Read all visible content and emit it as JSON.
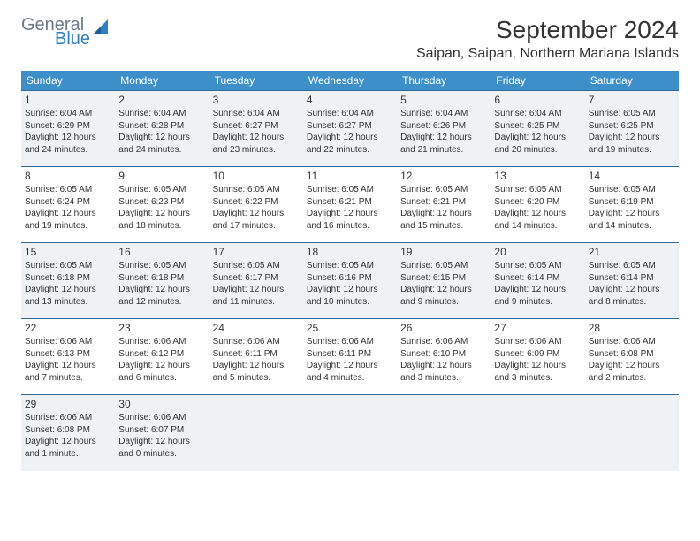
{
  "brand": {
    "general": "General",
    "blue": "Blue"
  },
  "title": "September 2024",
  "location": "Saipan, Saipan, Northern Mariana Islands",
  "colors": {
    "header_bg": "#3d8fc9",
    "header_text": "#ffffff",
    "row_alt_bg": "#eef2f5",
    "border": "#2f6a99",
    "logo_gray": "#6b7a89",
    "logo_blue": "#2f7ebf"
  },
  "day_headers": [
    "Sunday",
    "Monday",
    "Tuesday",
    "Wednesday",
    "Thursday",
    "Friday",
    "Saturday"
  ],
  "weeks": [
    {
      "alt": true,
      "cells": [
        {
          "n": "1",
          "sr": "6:04 AM",
          "ss": "6:29 PM",
          "dl": "12 hours and 24 minutes."
        },
        {
          "n": "2",
          "sr": "6:04 AM",
          "ss": "6:28 PM",
          "dl": "12 hours and 24 minutes."
        },
        {
          "n": "3",
          "sr": "6:04 AM",
          "ss": "6:27 PM",
          "dl": "12 hours and 23 minutes."
        },
        {
          "n": "4",
          "sr": "6:04 AM",
          "ss": "6:27 PM",
          "dl": "12 hours and 22 minutes."
        },
        {
          "n": "5",
          "sr": "6:04 AM",
          "ss": "6:26 PM",
          "dl": "12 hours and 21 minutes."
        },
        {
          "n": "6",
          "sr": "6:04 AM",
          "ss": "6:25 PM",
          "dl": "12 hours and 20 minutes."
        },
        {
          "n": "7",
          "sr": "6:05 AM",
          "ss": "6:25 PM",
          "dl": "12 hours and 19 minutes."
        }
      ]
    },
    {
      "alt": false,
      "cells": [
        {
          "n": "8",
          "sr": "6:05 AM",
          "ss": "6:24 PM",
          "dl": "12 hours and 19 minutes."
        },
        {
          "n": "9",
          "sr": "6:05 AM",
          "ss": "6:23 PM",
          "dl": "12 hours and 18 minutes."
        },
        {
          "n": "10",
          "sr": "6:05 AM",
          "ss": "6:22 PM",
          "dl": "12 hours and 17 minutes."
        },
        {
          "n": "11",
          "sr": "6:05 AM",
          "ss": "6:21 PM",
          "dl": "12 hours and 16 minutes."
        },
        {
          "n": "12",
          "sr": "6:05 AM",
          "ss": "6:21 PM",
          "dl": "12 hours and 15 minutes."
        },
        {
          "n": "13",
          "sr": "6:05 AM",
          "ss": "6:20 PM",
          "dl": "12 hours and 14 minutes."
        },
        {
          "n": "14",
          "sr": "6:05 AM",
          "ss": "6:19 PM",
          "dl": "12 hours and 14 minutes."
        }
      ]
    },
    {
      "alt": true,
      "cells": [
        {
          "n": "15",
          "sr": "6:05 AM",
          "ss": "6:18 PM",
          "dl": "12 hours and 13 minutes."
        },
        {
          "n": "16",
          "sr": "6:05 AM",
          "ss": "6:18 PM",
          "dl": "12 hours and 12 minutes."
        },
        {
          "n": "17",
          "sr": "6:05 AM",
          "ss": "6:17 PM",
          "dl": "12 hours and 11 minutes."
        },
        {
          "n": "18",
          "sr": "6:05 AM",
          "ss": "6:16 PM",
          "dl": "12 hours and 10 minutes."
        },
        {
          "n": "19",
          "sr": "6:05 AM",
          "ss": "6:15 PM",
          "dl": "12 hours and 9 minutes."
        },
        {
          "n": "20",
          "sr": "6:05 AM",
          "ss": "6:14 PM",
          "dl": "12 hours and 9 minutes."
        },
        {
          "n": "21",
          "sr": "6:05 AM",
          "ss": "6:14 PM",
          "dl": "12 hours and 8 minutes."
        }
      ]
    },
    {
      "alt": false,
      "cells": [
        {
          "n": "22",
          "sr": "6:06 AM",
          "ss": "6:13 PM",
          "dl": "12 hours and 7 minutes."
        },
        {
          "n": "23",
          "sr": "6:06 AM",
          "ss": "6:12 PM",
          "dl": "12 hours and 6 minutes."
        },
        {
          "n": "24",
          "sr": "6:06 AM",
          "ss": "6:11 PM",
          "dl": "12 hours and 5 minutes."
        },
        {
          "n": "25",
          "sr": "6:06 AM",
          "ss": "6:11 PM",
          "dl": "12 hours and 4 minutes."
        },
        {
          "n": "26",
          "sr": "6:06 AM",
          "ss": "6:10 PM",
          "dl": "12 hours and 3 minutes."
        },
        {
          "n": "27",
          "sr": "6:06 AM",
          "ss": "6:09 PM",
          "dl": "12 hours and 3 minutes."
        },
        {
          "n": "28",
          "sr": "6:06 AM",
          "ss": "6:08 PM",
          "dl": "12 hours and 2 minutes."
        }
      ]
    },
    {
      "alt": true,
      "cells": [
        {
          "n": "29",
          "sr": "6:06 AM",
          "ss": "6:08 PM",
          "dl": "12 hours and 1 minute."
        },
        {
          "n": "30",
          "sr": "6:06 AM",
          "ss": "6:07 PM",
          "dl": "12 hours and 0 minutes."
        },
        {
          "empty": true
        },
        {
          "empty": true
        },
        {
          "empty": true
        },
        {
          "empty": true
        },
        {
          "empty": true
        }
      ]
    }
  ],
  "labels": {
    "sunrise": "Sunrise: ",
    "sunset": "Sunset: ",
    "daylight": "Daylight: "
  }
}
